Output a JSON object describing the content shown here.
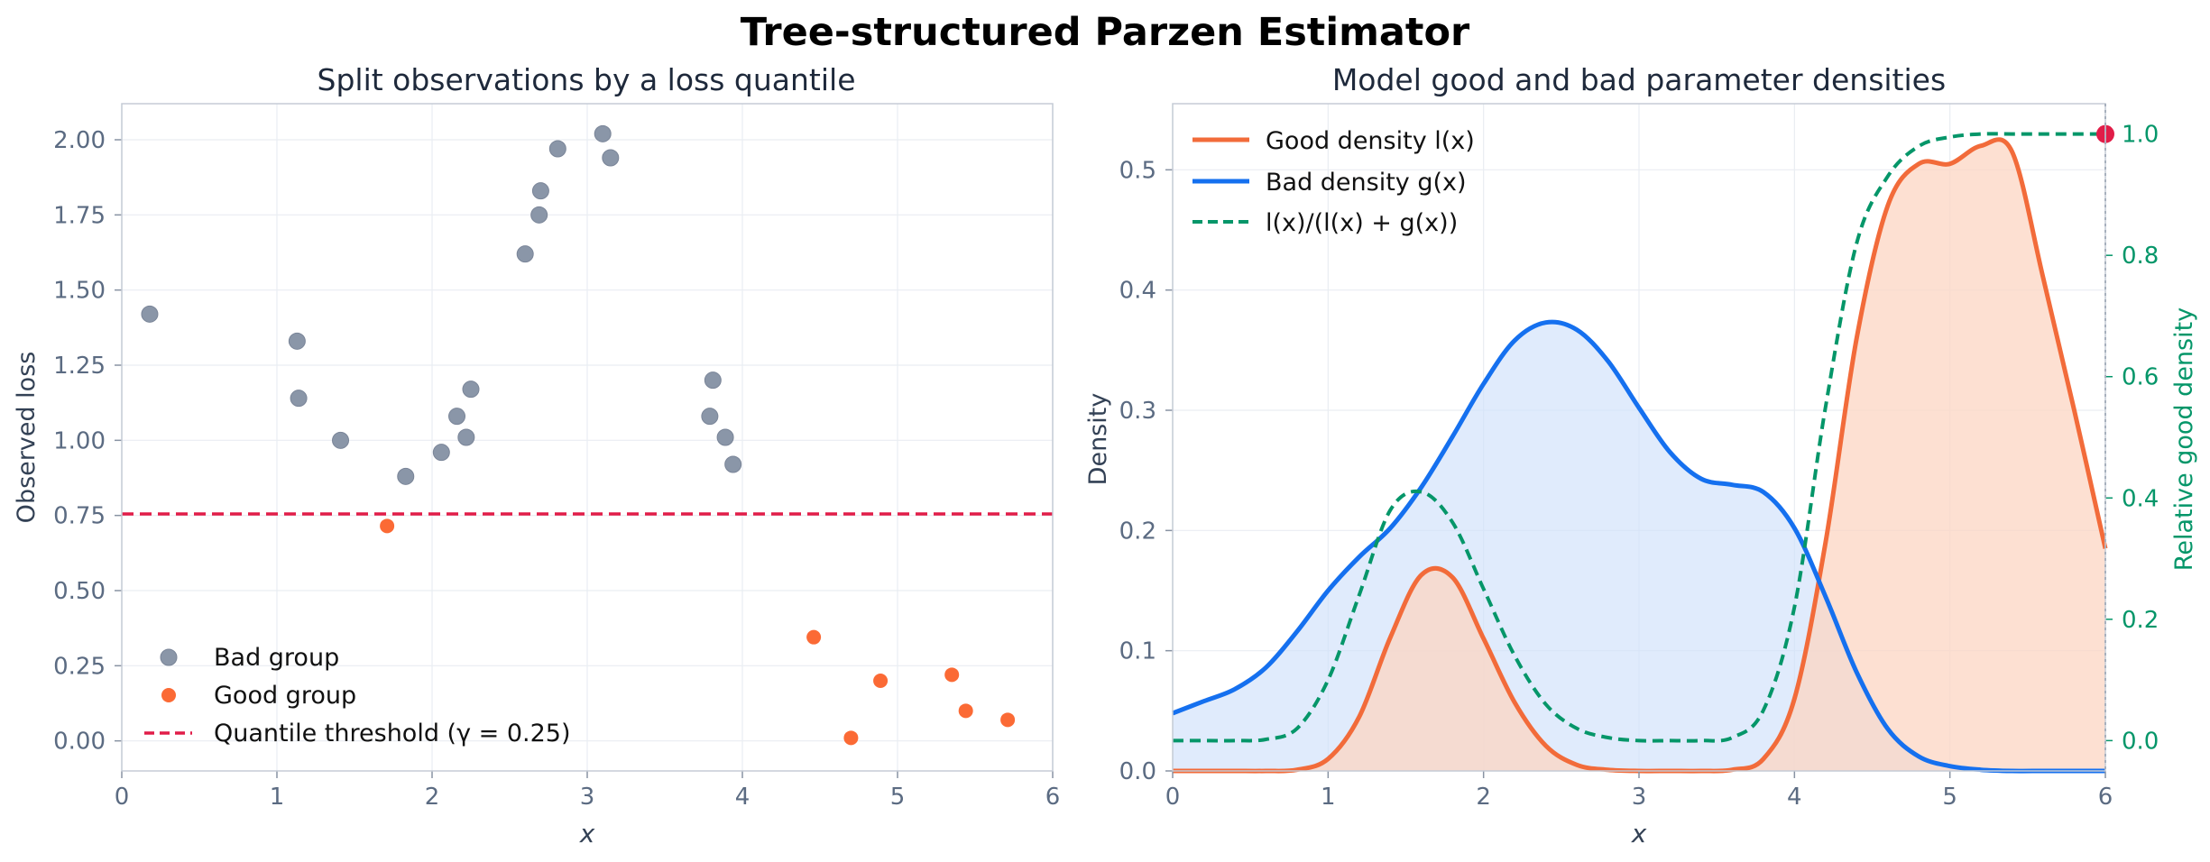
{
  "figure": {
    "suptitle": "Tree-structured Parzen Estimator"
  },
  "chart_data": [
    {
      "type": "scatter",
      "title": "Split observations by a loss quantile",
      "xlabel": "x",
      "ylabel": "Observed loss",
      "xlim": [
        0,
        6
      ],
      "ylim": [
        -0.1,
        2.12
      ],
      "xticks": [
        "0",
        "1",
        "2",
        "3",
        "4",
        "5",
        "6"
      ],
      "yticks": [
        "0.00",
        "0.25",
        "0.50",
        "0.75",
        "1.00",
        "1.25",
        "1.50",
        "1.75",
        "2.00"
      ],
      "grid": true,
      "legend_position": "lower-left",
      "threshold": {
        "name": "Quantile threshold (γ = 0.25)",
        "y": 0.755,
        "color": "#e11d48"
      },
      "series": [
        {
          "name": "Bad group",
          "color": "#8a96a8",
          "points": [
            [
              0.18,
              1.42
            ],
            [
              1.13,
              1.33
            ],
            [
              1.14,
              1.14
            ],
            [
              1.41,
              1.0
            ],
            [
              1.83,
              0.88
            ],
            [
              2.06,
              0.96
            ],
            [
              2.16,
              1.08
            ],
            [
              2.22,
              1.01
            ],
            [
              2.25,
              1.17
            ],
            [
              2.6,
              1.62
            ],
            [
              2.69,
              1.75
            ],
            [
              2.7,
              1.83
            ],
            [
              2.81,
              1.97
            ],
            [
              3.1,
              2.02
            ],
            [
              3.15,
              1.94
            ],
            [
              3.79,
              1.08
            ],
            [
              3.81,
              1.2
            ],
            [
              3.89,
              1.01
            ],
            [
              3.94,
              0.92
            ]
          ]
        },
        {
          "name": "Good group",
          "color": "#fb6a35",
          "points": [
            [
              1.71,
              0.715
            ],
            [
              4.46,
              0.345
            ],
            [
              4.7,
              0.01
            ],
            [
              4.89,
              0.2
            ],
            [
              5.35,
              0.22
            ],
            [
              5.44,
              0.1
            ],
            [
              5.71,
              0.07
            ]
          ]
        }
      ]
    },
    {
      "type": "line",
      "title": "Model good and bad parameter densities",
      "xlabel": "x",
      "ylabel": "Density",
      "ylabel_right": "Relative good density",
      "xlim": [
        0,
        6
      ],
      "ylim": [
        0,
        0.555
      ],
      "ylim_right": [
        -0.05,
        1.05
      ],
      "xticks": [
        "0",
        "1",
        "2",
        "3",
        "4",
        "5",
        "6"
      ],
      "yticks": [
        "0.0",
        "0.1",
        "0.2",
        "0.3",
        "0.4",
        "0.5"
      ],
      "yticks_right": [
        "0.0",
        "0.2",
        "0.4",
        "0.6",
        "0.8",
        "1.0"
      ],
      "grid": true,
      "legend_position": "upper-left",
      "legend_labels": [
        "Good density l(x)",
        "Bad density g(x)",
        "l(x)/(l(x) + g(x))"
      ],
      "x": [
        0,
        0.2,
        0.4,
        0.6,
        0.8,
        1.0,
        1.2,
        1.4,
        1.6,
        1.8,
        2.0,
        2.2,
        2.4,
        2.6,
        2.8,
        3.0,
        3.2,
        3.4,
        3.6,
        3.8,
        4.0,
        4.2,
        4.4,
        4.6,
        4.8,
        5.0,
        5.2,
        5.4,
        5.6,
        5.8,
        6.0
      ],
      "series": [
        {
          "name": "Good density l(x)",
          "color": "#f26b3a",
          "axis": "left",
          "values": [
            0.0,
            0.0,
            0.0,
            0.0,
            0.001,
            0.01,
            0.045,
            0.111,
            0.163,
            0.161,
            0.11,
            0.057,
            0.021,
            0.005,
            0.001,
            0.0,
            0.0,
            0.0,
            0.001,
            0.01,
            0.06,
            0.19,
            0.36,
            0.47,
            0.505,
            0.505,
            0.52,
            0.515,
            0.41,
            0.3,
            0.185
          ]
        },
        {
          "name": "Bad density g(x)",
          "color": "#1570ef",
          "axis": "left",
          "values": [
            0.048,
            0.058,
            0.068,
            0.086,
            0.116,
            0.15,
            0.178,
            0.202,
            0.236,
            0.278,
            0.322,
            0.358,
            0.373,
            0.367,
            0.341,
            0.302,
            0.265,
            0.243,
            0.238,
            0.232,
            0.202,
            0.145,
            0.082,
            0.035,
            0.012,
            0.004,
            0.001,
            0.0,
            0.0,
            0.0,
            0.0
          ]
        },
        {
          "name": "l(x)/(l(x) + g(x))",
          "color": "#059669",
          "axis": "right",
          "values": [
            0.0,
            0.0,
            0.0,
            0.002,
            0.02,
            0.1,
            0.24,
            0.38,
            0.41,
            0.36,
            0.25,
            0.14,
            0.06,
            0.02,
            0.005,
            0.0,
            0.0,
            0.0,
            0.005,
            0.05,
            0.22,
            0.55,
            0.82,
            0.93,
            0.98,
            0.995,
            1.0,
            1.0,
            1.0,
            1.0,
            1.0
          ]
        }
      ],
      "marker": {
        "x": 6.0,
        "y_right": 1.0,
        "color": "#e11d48"
      }
    }
  ]
}
